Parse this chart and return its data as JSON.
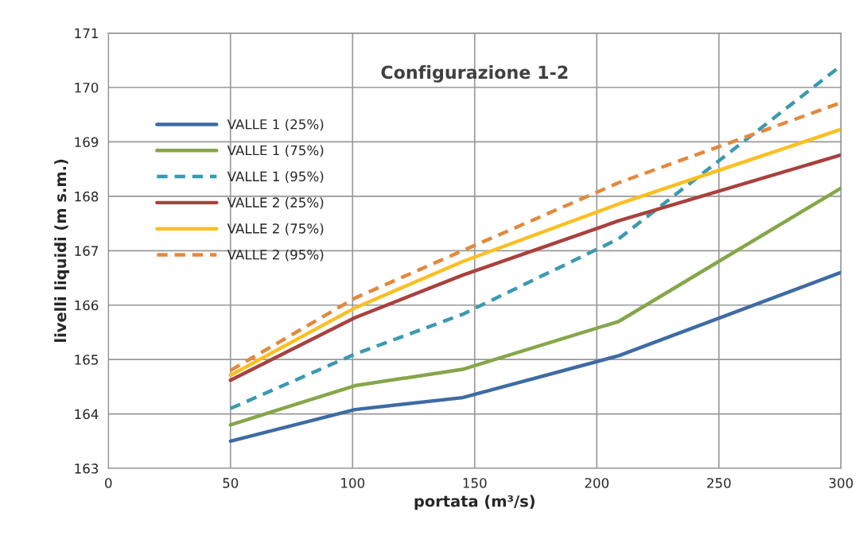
{
  "chart_data": {
    "type": "line",
    "title": "Configurazione 1-2",
    "xlabel": "portata (m³/s)",
    "ylabel": "livelli liquidi (m s.m.)",
    "x": [
      50,
      101,
      145,
      209,
      300
    ],
    "series": [
      {
        "name": "VALLE 1 (25%)",
        "color": "#3f6ba4",
        "line_style": "solid",
        "values": [
          163.5,
          164.08,
          164.3,
          165.07,
          166.6
        ]
      },
      {
        "name": "VALLE 1 (75%)",
        "color": "#86a64a",
        "line_style": "solid",
        "values": [
          163.8,
          164.52,
          164.82,
          165.7,
          168.15
        ]
      },
      {
        "name": "VALLE 1 (95%)",
        "color": "#3a9ab0",
        "line_style": "dashed",
        "values": [
          164.1,
          165.1,
          165.83,
          167.22,
          170.4
        ]
      },
      {
        "name": "VALLE 2 (25%)",
        "color": "#a9413e",
        "line_style": "solid",
        "values": [
          164.62,
          165.77,
          166.55,
          167.55,
          168.76
        ]
      },
      {
        "name": "VALLE 2 (75%)",
        "color": "#fbbf21",
        "line_style": "solid",
        "values": [
          164.71,
          165.95,
          166.8,
          167.86,
          169.23
        ]
      },
      {
        "name": "VALLE 2 (95%)",
        "color": "#e3883c",
        "line_style": "dashed",
        "values": [
          164.8,
          166.13,
          167.0,
          168.25,
          169.72
        ]
      }
    ],
    "xlim": [
      0,
      300
    ],
    "xticks": [
      0,
      50,
      100,
      150,
      200,
      250,
      300
    ],
    "ylim": [
      163,
      171
    ],
    "yticks": [
      163,
      164,
      165,
      166,
      167,
      168,
      169,
      170,
      171
    ],
    "grid": true,
    "legend": "top left",
    "marker": "none"
  }
}
